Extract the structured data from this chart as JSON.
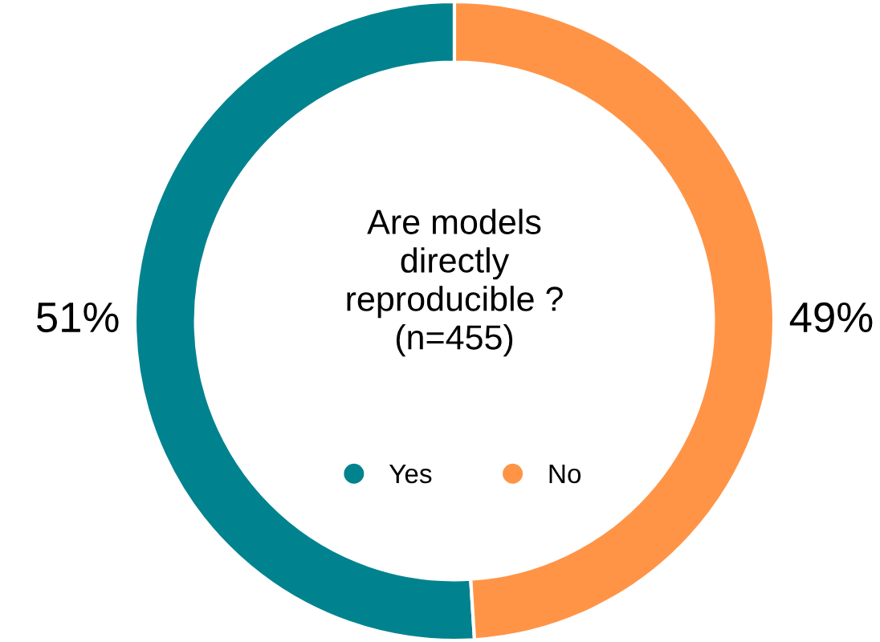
{
  "chart_data": {
    "type": "donut",
    "title": "Are models directly reproducible ? (n=455)",
    "categories": [
      "Yes",
      "No"
    ],
    "values": [
      51,
      49
    ],
    "colors": [
      "#00838f",
      "#ff9447"
    ],
    "value_labels": [
      "51%",
      "49%"
    ],
    "legend": "center"
  }
}
